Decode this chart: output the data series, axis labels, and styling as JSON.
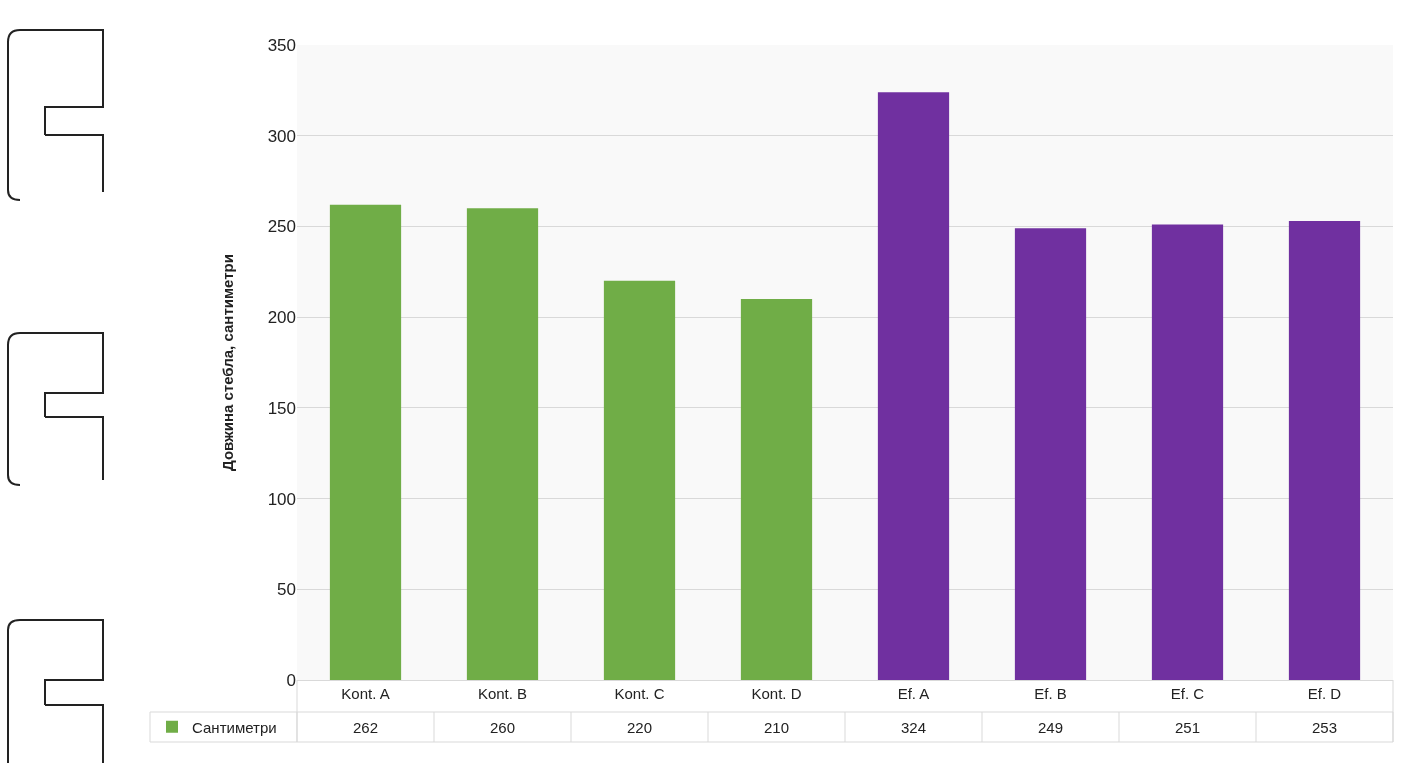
{
  "chart_data": {
    "type": "bar",
    "ylabel": "Довжина стебла, сантиметри",
    "categories": [
      "Kont. A",
      "Kont. B",
      "Kont. C",
      "Kont. D",
      "Ef. A",
      "Ef. B",
      "Ef. C",
      "Ef. D"
    ],
    "series": [
      {
        "name": "Сантиметри",
        "color": "#70ad47",
        "colors": [
          "#70ad47",
          "#70ad47",
          "#70ad47",
          "#70ad47",
          "#7030a0",
          "#7030a0",
          "#7030a0",
          "#7030a0"
        ],
        "values": [
          262,
          260,
          220,
          210,
          324,
          249,
          251,
          253
        ]
      }
    ],
    "ylim": [
      0,
      350
    ],
    "yticks": [
      0,
      50,
      100,
      150,
      200,
      250,
      300,
      350
    ],
    "grid": "y",
    "legend": "bottom left",
    "data_labels": true
  }
}
